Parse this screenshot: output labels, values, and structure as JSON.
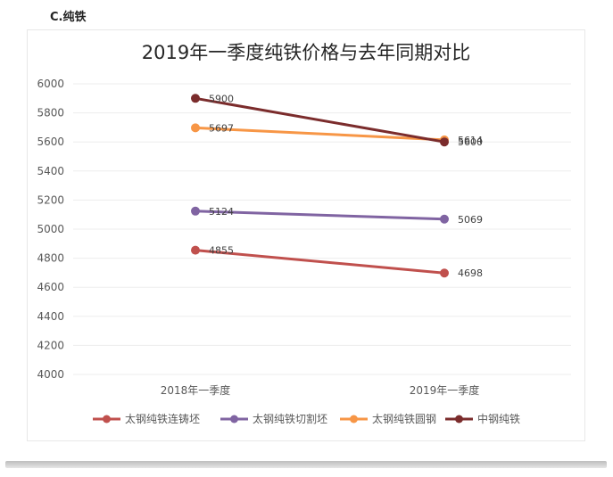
{
  "section_label": "C.纯铁",
  "chart_data": {
    "type": "line",
    "title": "2019年一季度纯铁价格与去年同期对比",
    "categories": [
      "2018年一季度",
      "2019年一季度"
    ],
    "ylim": [
      4000,
      6000
    ],
    "yticks": [
      4000,
      4200,
      4400,
      4600,
      4800,
      5000,
      5200,
      5400,
      5600,
      5800,
      6000
    ],
    "grid": true,
    "legend_position": "bottom",
    "series": [
      {
        "name": "太钢纯铁连铸坯",
        "values": [
          4855,
          4698
        ],
        "color": "#c0504d"
      },
      {
        "name": "太钢纯铁切割坯",
        "values": [
          5124,
          5069
        ],
        "color": "#8064a2"
      },
      {
        "name": "太钢纯铁圆钢",
        "values": [
          5697,
          5614
        ],
        "color": "#f79646"
      },
      {
        "name": "中钢纯铁",
        "values": [
          5900,
          5600
        ],
        "color": "#7b2c2c"
      }
    ]
  }
}
